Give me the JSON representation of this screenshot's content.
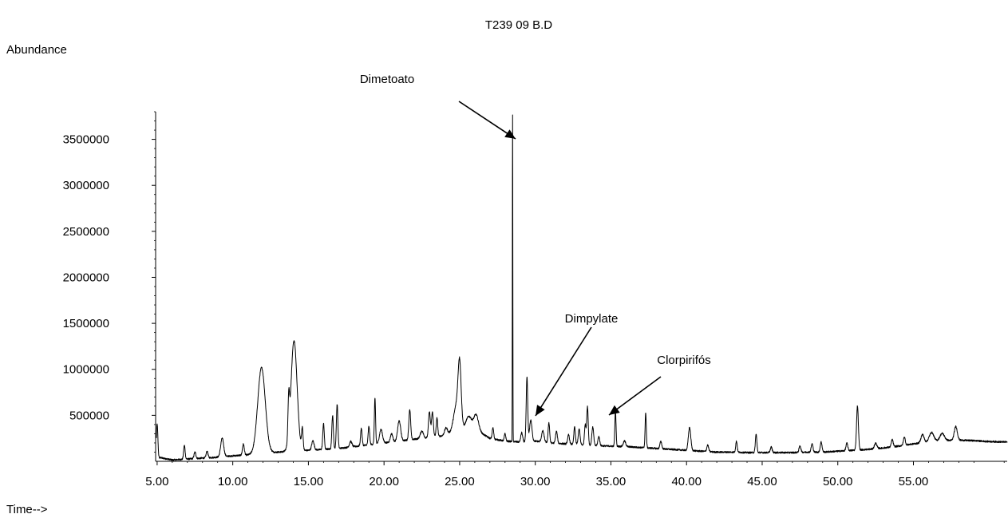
{
  "chart_data": {
    "type": "line",
    "title": "T239 09 B.D",
    "ylabel": "Abundance",
    "xlabel": "Time-->",
    "xlim": [
      4.9,
      61.2
    ],
    "ylim": [
      0,
      3800000
    ],
    "x_ticks": [
      5,
      10,
      15,
      20,
      25,
      30,
      35,
      40,
      45,
      50,
      55
    ],
    "x_tick_labels": [
      "5.00",
      "10.00",
      "15.00",
      "20.00",
      "25.00",
      "30.00",
      "35.00",
      "40.00",
      "45.00",
      "50.00",
      "55.00"
    ],
    "y_ticks": [
      500000,
      1000000,
      1500000,
      2000000,
      2500000,
      3000000,
      3500000
    ],
    "y_tick_labels": [
      "500000",
      "1000000",
      "1500000",
      "2000000",
      "2500000",
      "3000000",
      "3500000"
    ],
    "baseline": [
      [
        4.95,
        20000
      ],
      [
        5.2,
        40000
      ],
      [
        6,
        15000
      ],
      [
        7,
        25000
      ],
      [
        8,
        35000
      ],
      [
        9,
        45000
      ],
      [
        10,
        60000
      ],
      [
        11,
        70000
      ],
      [
        12,
        90000
      ],
      [
        13,
        100000
      ],
      [
        14,
        110000
      ],
      [
        15,
        120000
      ],
      [
        16,
        130000
      ],
      [
        17,
        140000
      ],
      [
        18,
        160000
      ],
      [
        19,
        180000
      ],
      [
        20,
        200000
      ],
      [
        21,
        220000
      ],
      [
        22,
        240000
      ],
      [
        23,
        260000
      ],
      [
        24,
        280000
      ],
      [
        25,
        320000
      ],
      [
        26,
        350000
      ],
      [
        27,
        250000
      ],
      [
        28,
        220000
      ],
      [
        29,
        210000
      ],
      [
        30,
        220000
      ],
      [
        31,
        200000
      ],
      [
        32,
        190000
      ],
      [
        33,
        180000
      ],
      [
        34,
        170000
      ],
      [
        35,
        165000
      ],
      [
        36,
        160000
      ],
      [
        37,
        150000
      ],
      [
        38,
        140000
      ],
      [
        39,
        130000
      ],
      [
        40,
        120000
      ],
      [
        41,
        110000
      ],
      [
        42,
        100000
      ],
      [
        43,
        100000
      ],
      [
        44,
        95000
      ],
      [
        45,
        95000
      ],
      [
        46,
        95000
      ],
      [
        47,
        95000
      ],
      [
        48,
        100000
      ],
      [
        49,
        100000
      ],
      [
        50,
        110000
      ],
      [
        51,
        120000
      ],
      [
        52,
        130000
      ],
      [
        53,
        145000
      ],
      [
        54,
        165000
      ],
      [
        55,
        190000
      ],
      [
        56,
        210000
      ],
      [
        57,
        225000
      ],
      [
        58,
        230000
      ],
      [
        59,
        225000
      ],
      [
        60,
        215000
      ],
      [
        61.2,
        210000
      ]
    ],
    "peaks": [
      [
        5.0,
        380000,
        0.05
      ],
      [
        6.8,
        150000,
        0.05
      ],
      [
        7.5,
        70000,
        0.06
      ],
      [
        8.3,
        70000,
        0.06
      ],
      [
        9.3,
        200000,
        0.1
      ],
      [
        10.7,
        120000,
        0.06
      ],
      [
        11.9,
        930000,
        0.25
      ],
      [
        13.7,
        420000,
        0.05
      ],
      [
        14.05,
        1200000,
        0.2
      ],
      [
        14.6,
        230000,
        0.05
      ],
      [
        15.3,
        100000,
        0.08
      ],
      [
        16.0,
        280000,
        0.05
      ],
      [
        16.6,
        360000,
        0.05
      ],
      [
        16.9,
        480000,
        0.05
      ],
      [
        17.8,
        60000,
        0.08
      ],
      [
        18.5,
        190000,
        0.05
      ],
      [
        19.0,
        200000,
        0.05
      ],
      [
        19.4,
        500000,
        0.04
      ],
      [
        19.8,
        150000,
        0.1
      ],
      [
        20.5,
        90000,
        0.08
      ],
      [
        21.0,
        220000,
        0.1
      ],
      [
        21.7,
        330000,
        0.06
      ],
      [
        22.5,
        80000,
        0.1
      ],
      [
        23.0,
        280000,
        0.06
      ],
      [
        23.2,
        270000,
        0.06
      ],
      [
        23.5,
        200000,
        0.05
      ],
      [
        24.1,
        80000,
        0.1
      ],
      [
        24.8,
        300000,
        0.2
      ],
      [
        25.0,
        620000,
        0.1
      ],
      [
        25.6,
        150000,
        0.2
      ],
      [
        26.1,
        160000,
        0.15
      ],
      [
        27.2,
        120000,
        0.05
      ],
      [
        28.0,
        80000,
        0.05
      ],
      [
        28.5,
        3550000,
        0.015
      ],
      [
        29.1,
        100000,
        0.06
      ],
      [
        29.45,
        700000,
        0.05
      ],
      [
        29.7,
        230000,
        0.08
      ],
      [
        30.5,
        120000,
        0.08
      ],
      [
        30.9,
        220000,
        0.05
      ],
      [
        31.4,
        130000,
        0.06
      ],
      [
        32.2,
        100000,
        0.06
      ],
      [
        32.6,
        190000,
        0.05
      ],
      [
        32.9,
        170000,
        0.06
      ],
      [
        33.3,
        220000,
        0.05
      ],
      [
        33.45,
        420000,
        0.05
      ],
      [
        33.8,
        200000,
        0.06
      ],
      [
        34.2,
        100000,
        0.06
      ],
      [
        35.3,
        380000,
        0.04
      ],
      [
        35.9,
        60000,
        0.08
      ],
      [
        37.3,
        380000,
        0.04
      ],
      [
        38.3,
        80000,
        0.06
      ],
      [
        40.2,
        250000,
        0.08
      ],
      [
        41.4,
        70000,
        0.06
      ],
      [
        43.3,
        120000,
        0.05
      ],
      [
        44.6,
        200000,
        0.05
      ],
      [
        45.6,
        60000,
        0.06
      ],
      [
        47.5,
        70000,
        0.06
      ],
      [
        48.3,
        90000,
        0.06
      ],
      [
        48.9,
        110000,
        0.06
      ],
      [
        50.6,
        80000,
        0.06
      ],
      [
        51.3,
        480000,
        0.06
      ],
      [
        52.5,
        60000,
        0.08
      ],
      [
        53.6,
        80000,
        0.06
      ],
      [
        54.4,
        90000,
        0.06
      ],
      [
        55.6,
        90000,
        0.1
      ],
      [
        56.2,
        100000,
        0.15
      ],
      [
        56.9,
        80000,
        0.15
      ],
      [
        57.8,
        150000,
        0.1
      ]
    ],
    "annotations": [
      {
        "label": "Dimetoato",
        "x": 28.5,
        "y": 3550000
      },
      {
        "label": "Dimpylate",
        "x": 29.6,
        "y": 500000
      },
      {
        "label": "Clorpirifós",
        "x": 35.0,
        "y": 480000
      }
    ],
    "line_color": "#000000",
    "grid": false,
    "legend": "none"
  }
}
